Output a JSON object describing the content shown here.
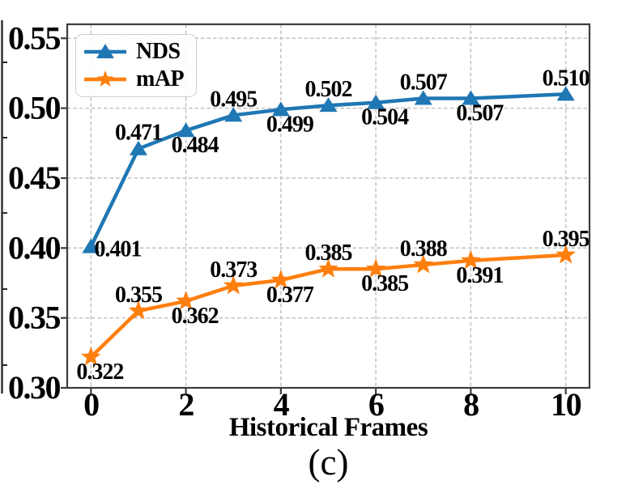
{
  "figure": {
    "caption": "(c)",
    "background": "#ffffff"
  },
  "chart_data": {
    "type": "line",
    "title": "",
    "xlabel": "Historical Frames",
    "ylabel": "",
    "x": [
      0,
      1,
      2,
      3,
      4,
      5,
      6,
      7,
      8,
      10
    ],
    "series": [
      {
        "name": "NDS",
        "color": "#1f77b4",
        "marker": "triangle",
        "values": [
          0.401,
          0.471,
          0.484,
          0.495,
          0.499,
          0.502,
          0.504,
          0.507,
          0.507,
          0.51
        ],
        "label_side": [
          "right",
          "above",
          "below",
          "above",
          "below",
          "above",
          "below",
          "above",
          "below",
          "above"
        ]
      },
      {
        "name": "mAP",
        "color": "#ff7f0e",
        "marker": "star",
        "values": [
          0.322,
          0.355,
          0.362,
          0.373,
          0.377,
          0.385,
          0.385,
          0.388,
          0.391,
          0.395
        ],
        "label_side": [
          "below",
          "above",
          "below",
          "above",
          "below",
          "above",
          "below",
          "above",
          "below",
          "above"
        ]
      }
    ],
    "xlim": [
      -0.5,
      10.5
    ],
    "ylim": [
      0.3,
      0.56
    ],
    "xticks": [
      0,
      2,
      4,
      6,
      8,
      10
    ],
    "xtick_labels": [
      "0",
      "2",
      "4",
      "6",
      "8",
      "10"
    ],
    "yticks": [
      0.3,
      0.35,
      0.4,
      0.45,
      0.5,
      0.55
    ],
    "ytick_labels": [
      "0.30",
      "0.35",
      "0.40",
      "0.45",
      "0.50",
      "0.55"
    ],
    "grid": true,
    "grid_style": "dashed",
    "legend_position": "upper-left",
    "colors": {
      "axis": "#3d3d3d",
      "grid": "#c2c2c2",
      "text": "#000000"
    }
  }
}
